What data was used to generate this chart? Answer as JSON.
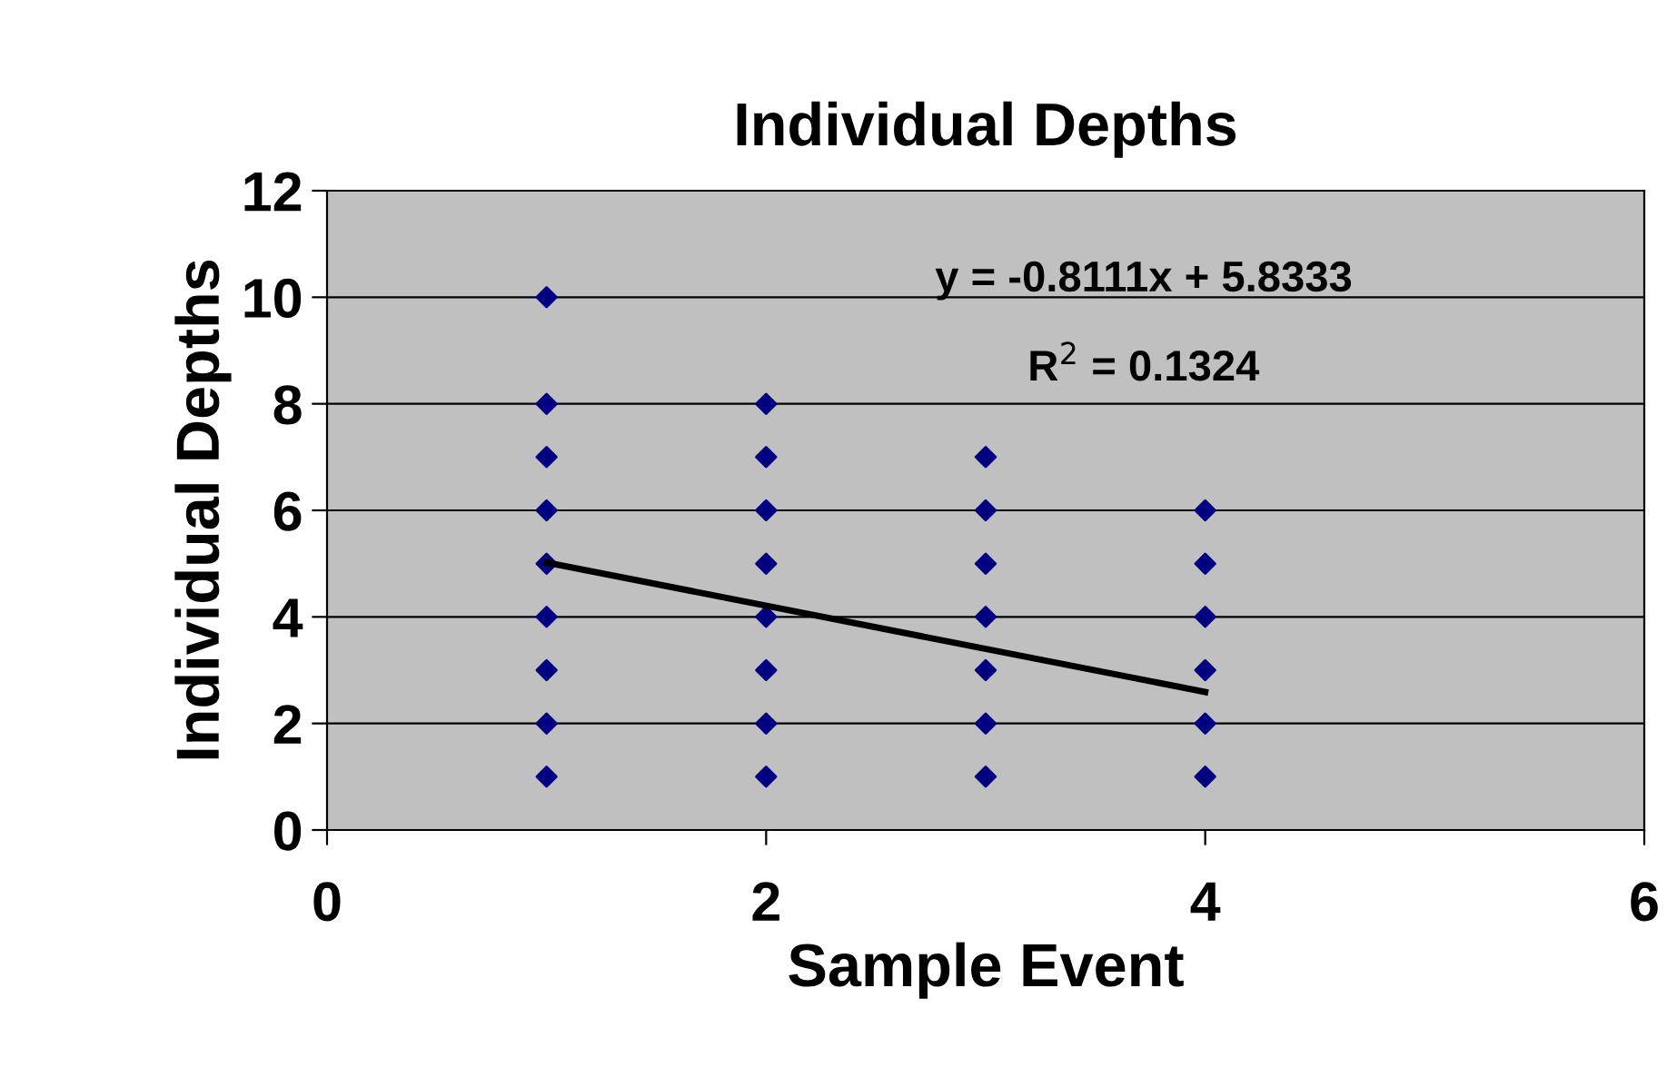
{
  "chart_data": {
    "type": "scatter",
    "title": "Individual Depths",
    "xlabel": "Sample Event",
    "ylabel": "Individual Depths",
    "series": [
      {
        "color": "#000080",
        "marker": "diamond",
        "x": [
          1,
          1,
          1,
          1,
          1,
          1,
          1,
          1,
          1,
          2,
          2,
          2,
          2,
          2,
          2,
          2,
          2,
          3,
          3,
          3,
          3,
          3,
          3,
          3,
          4,
          4,
          4,
          4,
          4,
          4
        ],
        "values": [
          1,
          2,
          3,
          4,
          5,
          6,
          7,
          8,
          10,
          1,
          2,
          3,
          4,
          5,
          6,
          7,
          8,
          1,
          2,
          3,
          4,
          5,
          6,
          7,
          1,
          2,
          3,
          4,
          5,
          6
        ]
      },
      {
        "type": "line",
        "color": "#000000",
        "marker": "none",
        "x": [
          1,
          4
        ],
        "values": [
          5.02,
          2.59
        ]
      }
    ],
    "annotations": [
      "y = -0.8111x + 5.8333",
      "R$^{2}$ = 0.1324"
    ],
    "xlim": [
      0,
      6
    ],
    "xticks": [
      0,
      2,
      4,
      6
    ],
    "ylim": [
      0,
      12
    ],
    "yticks": [
      0,
      2,
      4,
      6,
      8,
      10,
      12
    ],
    "grid": "y",
    "legend": false
  }
}
